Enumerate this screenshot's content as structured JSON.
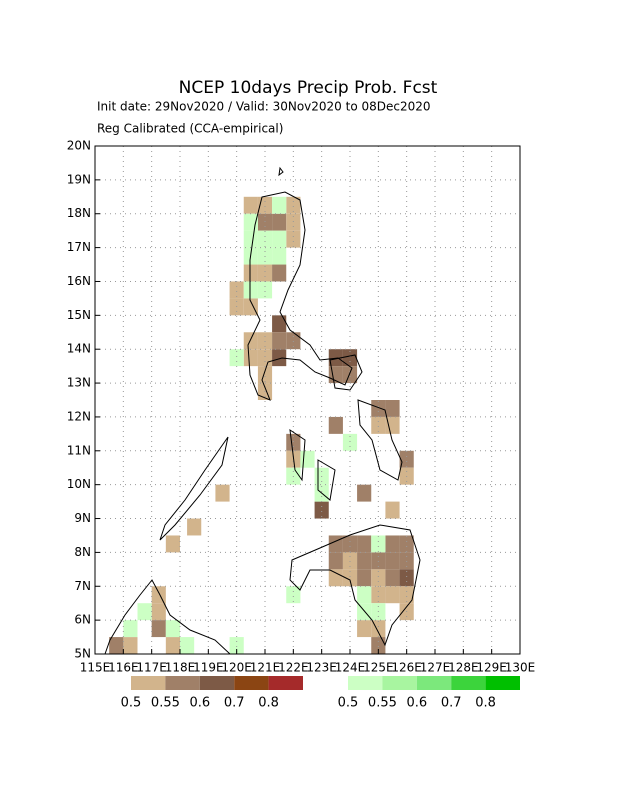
{
  "chart_data": {
    "type": "grid-map",
    "title": "NCEP 10days Precip Prob. Fcst",
    "subtitle": "Init date: 29Nov2020 / Valid: 30Nov2020 to 08Dec2020",
    "note": "Reg Calibrated (CCA-empirical)",
    "xlim": [
      115,
      130
    ],
    "ylim": [
      5,
      20
    ],
    "xticks": [
      {
        "value": 115,
        "label": "115E"
      },
      {
        "value": 116,
        "label": "116E"
      },
      {
        "value": 117,
        "label": "117E"
      },
      {
        "value": 118,
        "label": "118E"
      },
      {
        "value": 119,
        "label": "119E"
      },
      {
        "value": 120,
        "label": "120E"
      },
      {
        "value": 121,
        "label": "121E"
      },
      {
        "value": 122,
        "label": "122E"
      },
      {
        "value": 123,
        "label": "123E"
      },
      {
        "value": 124,
        "label": "124E"
      },
      {
        "value": 125,
        "label": "125E"
      },
      {
        "value": 126,
        "label": "126E"
      },
      {
        "value": 127,
        "label": "127E"
      },
      {
        "value": 128,
        "label": "128E"
      },
      {
        "value": 129,
        "label": "129E"
      },
      {
        "value": 130,
        "label": "130E"
      }
    ],
    "yticks": [
      {
        "value": 5,
        "label": "5N"
      },
      {
        "value": 6,
        "label": "6N"
      },
      {
        "value": 7,
        "label": "7N"
      },
      {
        "value": 8,
        "label": "8N"
      },
      {
        "value": 9,
        "label": "9N"
      },
      {
        "value": 10,
        "label": "10N"
      },
      {
        "value": 11,
        "label": "11N"
      },
      {
        "value": 12,
        "label": "12N"
      },
      {
        "value": 13,
        "label": "13N"
      },
      {
        "value": 14,
        "label": "14N"
      },
      {
        "value": 15,
        "label": "15N"
      },
      {
        "value": 16,
        "label": "16N"
      },
      {
        "value": 17,
        "label": "17N"
      },
      {
        "value": 18,
        "label": "18N"
      },
      {
        "value": 19,
        "label": "19N"
      },
      {
        "value": 20,
        "label": "20N"
      }
    ],
    "grid": true,
    "dry_scale": {
      "levels": [
        0.5,
        0.55,
        0.6,
        0.7,
        0.8
      ],
      "colors": [
        "#d2b48c",
        "#a08068",
        "#7d5a46",
        "#8b4513",
        "#a52a2a"
      ]
    },
    "wet_scale": {
      "levels": [
        0.5,
        0.55,
        0.6,
        0.7,
        0.8
      ],
      "colors": [
        "#ccffc4",
        "#a8f5a0",
        "#7ce87c",
        "#3cd43c",
        "#00bf00"
      ]
    },
    "dry": {
      "lon": [
        120.5,
        121,
        122,
        121,
        121.5,
        122,
        122,
        120.5,
        121,
        121.5,
        120,
        120,
        120.5,
        121.5,
        120.5,
        121,
        121.5,
        122,
        120.5,
        121,
        121.5,
        123.5,
        124,
        121,
        123.5,
        124,
        121,
        125,
        125.5,
        123.5,
        125,
        125.5,
        122,
        122,
        126,
        126,
        124.5,
        123,
        125.5,
        119.5,
        118.5,
        117.75,
        123.5,
        124,
        124.5,
        125.5,
        126,
        123.5,
        124,
        124.5,
        125,
        125.5,
        126,
        123.5,
        124,
        124.5,
        125,
        125.5,
        126,
        125,
        125.5,
        126,
        126,
        124.5,
        125,
        125,
        117.25,
        117.25,
        117.25,
        116.25,
        115.75,
        117.75
      ],
      "lat": [
        18.25,
        18.25,
        18.25,
        17.75,
        17.75,
        17.75,
        17.25,
        16.25,
        16.25,
        16.25,
        15.75,
        15.25,
        15.25,
        14.75,
        14.25,
        14.25,
        14.25,
        14.25,
        13.75,
        13.75,
        13.75,
        13.75,
        13.75,
        13.25,
        13.25,
        13.25,
        12.75,
        12.25,
        12.25,
        11.75,
        11.75,
        11.75,
        11.25,
        10.75,
        10.75,
        10.25,
        9.75,
        9.25,
        9.25,
        9.75,
        8.75,
        8.25,
        8.25,
        8.25,
        8.25,
        8.25,
        8.25,
        7.75,
        7.75,
        7.75,
        7.75,
        7.75,
        7.75,
        7.25,
        7.25,
        7.25,
        7.25,
        7.25,
        7.25,
        6.75,
        6.75,
        6.75,
        6.25,
        5.75,
        5.75,
        5.25,
        6.75,
        6.25,
        5.75,
        5.25,
        5.25,
        5.25
      ],
      "prob": [
        0.5,
        0.5,
        0.5,
        0.55,
        0.55,
        0.5,
        0.5,
        0.5,
        0.5,
        0.55,
        0.5,
        0.5,
        0.5,
        0.6,
        0.5,
        0.5,
        0.55,
        0.55,
        0.5,
        0.5,
        0.6,
        0.6,
        0.6,
        0.5,
        0.55,
        0.55,
        0.5,
        0.55,
        0.55,
        0.55,
        0.5,
        0.5,
        0.55,
        0.5,
        0.55,
        0.5,
        0.55,
        0.6,
        0.5,
        0.5,
        0.5,
        0.5,
        0.55,
        0.55,
        0.55,
        0.55,
        0.55,
        0.55,
        0.5,
        0.55,
        0.55,
        0.55,
        0.55,
        0.5,
        0.5,
        0.55,
        0.5,
        0.55,
        0.6,
        0.5,
        0.5,
        0.5,
        0.5,
        0.5,
        0.5,
        0.55,
        0.5,
        0.5,
        0.55,
        0.5,
        0.55,
        0.5
      ]
    },
    "wet": {
      "lon": [
        121.5,
        120.5,
        120.5,
        121,
        121.5,
        120.5,
        121,
        121.5,
        120.5,
        121,
        120,
        122.5,
        122,
        123,
        123,
        125,
        124.5,
        124.5,
        125,
        122,
        116.75,
        116.25,
        117.75,
        118.25,
        120,
        124
      ],
      "lat": [
        18.25,
        17.75,
        17.25,
        17.25,
        17.25,
        16.75,
        16.75,
        16.75,
        15.75,
        15.75,
        13.75,
        10.75,
        10.25,
        10.25,
        9.75,
        8.25,
        6.75,
        6.25,
        6.25,
        6.75,
        6.25,
        5.75,
        5.75,
        5.25,
        5.25,
        11.25
      ],
      "prob": [
        0.5,
        0.5,
        0.5,
        0.5,
        0.5,
        0.5,
        0.5,
        0.5,
        0.5,
        0.5,
        0.5,
        0.5,
        0.5,
        0.5,
        0.5,
        0.5,
        0.5,
        0.5,
        0.5,
        0.5,
        0.5,
        0.5,
        0.5,
        0.5,
        0.5,
        0.5
      ]
    }
  }
}
